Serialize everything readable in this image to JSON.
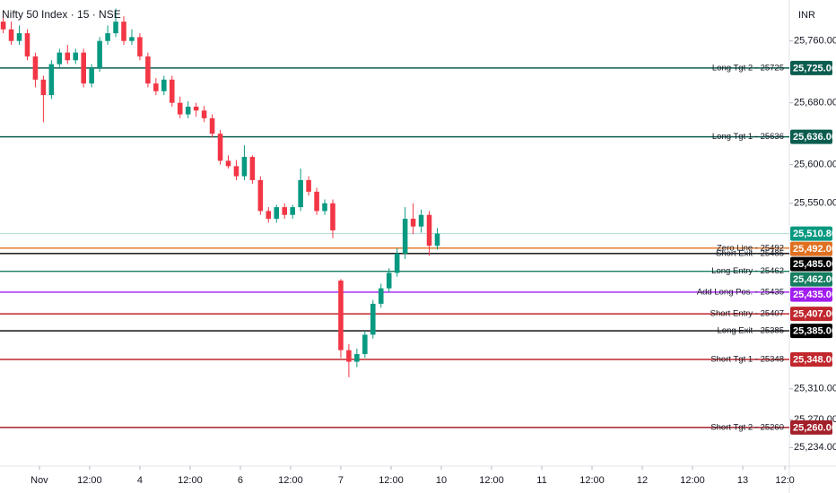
{
  "chart_data": {
    "type": "candlestick",
    "title": "Nifty 50 Index · 15 · NSE",
    "currency": "INR",
    "up_color": "#089981",
    "down_color": "#f23645",
    "x": [
      -9,
      -7,
      -5,
      -3,
      -1,
      1,
      3,
      5,
      7,
      9,
      11,
      13,
      15,
      17,
      19,
      21,
      23,
      25,
      27,
      29,
      31,
      33,
      35,
      37,
      39,
      41,
      43,
      45,
      47,
      49,
      51,
      53,
      55,
      57,
      59,
      61,
      63,
      65,
      67,
      69,
      71,
      73,
      75,
      77,
      79,
      81,
      83,
      85,
      87,
      89,
      91,
      93,
      95,
      97,
      99
    ],
    "open": [
      25785,
      25775,
      25760,
      25770,
      25740,
      25710,
      25690,
      25730,
      25745,
      25735,
      25745,
      25705,
      25725,
      25760,
      25770,
      25785,
      25760,
      25765,
      25740,
      25705,
      25695,
      25710,
      25680,
      25665,
      25675,
      25670,
      25660,
      25640,
      25605,
      25598,
      25585,
      25610,
      25580,
      25540,
      25530,
      25545,
      25535,
      25545,
      25580,
      25565,
      25540,
      25550,
      25450,
      25360,
      25345,
      25355,
      25380,
      25420,
      25440,
      25460,
      25485,
      25530,
      25520,
      25535,
      25495
    ],
    "high": [
      25795,
      25785,
      25780,
      25775,
      25745,
      25715,
      25735,
      25750,
      25755,
      25750,
      25750,
      25730,
      25765,
      25780,
      25802,
      25792,
      25775,
      25770,
      25745,
      25712,
      25715,
      25715,
      25688,
      25682,
      25680,
      25676,
      25665,
      25645,
      25612,
      25606,
      25625,
      25612,
      25585,
      25545,
      25548,
      25550,
      25548,
      25595,
      25585,
      25570,
      25555,
      25555,
      25452,
      25368,
      25362,
      25385,
      25425,
      25446,
      25466,
      25492,
      25545,
      25550,
      25542,
      25540,
      25518
    ],
    "low": [
      25770,
      25755,
      25755,
      25735,
      25700,
      25655,
      25685,
      25725,
      25730,
      25730,
      25700,
      25700,
      25720,
      25755,
      25765,
      25755,
      25755,
      25735,
      25700,
      25690,
      25690,
      25675,
      25660,
      25660,
      25662,
      25655,
      25635,
      25600,
      25595,
      25580,
      25580,
      25575,
      25535,
      25525,
      25525,
      25530,
      25530,
      25540,
      25560,
      25535,
      25535,
      25505,
      25350,
      25325,
      25338,
      25350,
      25375,
      25415,
      25435,
      25455,
      25478,
      25510,
      25512,
      25482,
      25490
    ],
    "close": [
      25775,
      25760,
      25770,
      25740,
      25710,
      25690,
      25730,
      25745,
      25735,
      25745,
      25705,
      25725,
      25760,
      25770,
      25785,
      25760,
      25765,
      25740,
      25705,
      25695,
      25710,
      25680,
      25665,
      25675,
      25670,
      25660,
      25640,
      25605,
      25598,
      25585,
      25610,
      25580,
      25540,
      25530,
      25545,
      25535,
      25545,
      25580,
      25565,
      25540,
      25550,
      25515,
      25360,
      25345,
      25355,
      25380,
      25420,
      25440,
      25460,
      25485,
      25530,
      25520,
      25535,
      25495,
      25510.8
    ],
    "last": {
      "value": 25510.8,
      "label": "25,510.80",
      "color": "#089981"
    },
    "levels": [
      {
        "name": "Long Tgt 2 - 25725",
        "value": 25725,
        "label": "25,725.00",
        "color": "#0b5d4f"
      },
      {
        "name": "Long Tgt 1 - 25636",
        "value": 25636,
        "label": "25,636.00",
        "color": "#0b5d4f"
      },
      {
        "name": "Zero Line - 25492",
        "value": 25492,
        "label": "25,492.00",
        "color": "#e07020"
      },
      {
        "name": "Short Exit - 25485",
        "value": 25485,
        "label": "25,485.00",
        "color": "#000000"
      },
      {
        "name": "Long Entry - 25462",
        "value": 25462,
        "label": "25,462.00",
        "color": "#167e62"
      },
      {
        "name": "Add Long Pos. - 25435",
        "value": 25435,
        "label": "25,435.00",
        "color": "#a21cf0"
      },
      {
        "name": "Short Entry - 25407",
        "value": 25407,
        "label": "25,407.00",
        "color": "#c1272d"
      },
      {
        "name": "Long Exit - 25385",
        "value": 25385,
        "label": "25,385.00",
        "color": "#000000"
      },
      {
        "name": "Short Tgt 1 - 25348",
        "value": 25348,
        "label": "25,348.00",
        "color": "#c1272d"
      },
      {
        "name": "Short Tgt 2 - 25260",
        "value": 25260,
        "label": "25,260.00",
        "color": "#a3202a"
      }
    ],
    "xlim": [
      -9.8,
      186.6
    ],
    "xticks": [
      {
        "value": 0,
        "label": "Nov"
      },
      {
        "value": 12.5,
        "label": "12:00"
      },
      {
        "value": 25,
        "label": "4"
      },
      {
        "value": 37.5,
        "label": "12:00"
      },
      {
        "value": 50,
        "label": "6"
      },
      {
        "value": 62.5,
        "label": "12:00"
      },
      {
        "value": 75,
        "label": "7"
      },
      {
        "value": 87.5,
        "label": "12:00"
      },
      {
        "value": 100,
        "label": "10"
      },
      {
        "value": 112.5,
        "label": "12:00"
      },
      {
        "value": 125,
        "label": "11"
      },
      {
        "value": 137.5,
        "label": "12:00"
      },
      {
        "value": 150,
        "label": "12"
      },
      {
        "value": 162.5,
        "label": "12:00"
      },
      {
        "value": 175,
        "label": "13"
      },
      {
        "value": 185.5,
        "label": "12:0"
      }
    ],
    "ylim": [
      25210,
      25813
    ],
    "yticks": [
      {
        "value": 25760,
        "label": "25,760.00"
      },
      {
        "value": 25680,
        "label": "25,680.00"
      },
      {
        "value": 25600,
        "label": "25,600.00"
      },
      {
        "value": 25550,
        "label": "25,550.00"
      },
      {
        "value": 25310,
        "label": "25,310.00"
      },
      {
        "value": 25270,
        "label": "25,270.00"
      },
      {
        "value": 25234,
        "label": "25,234.00"
      }
    ]
  }
}
